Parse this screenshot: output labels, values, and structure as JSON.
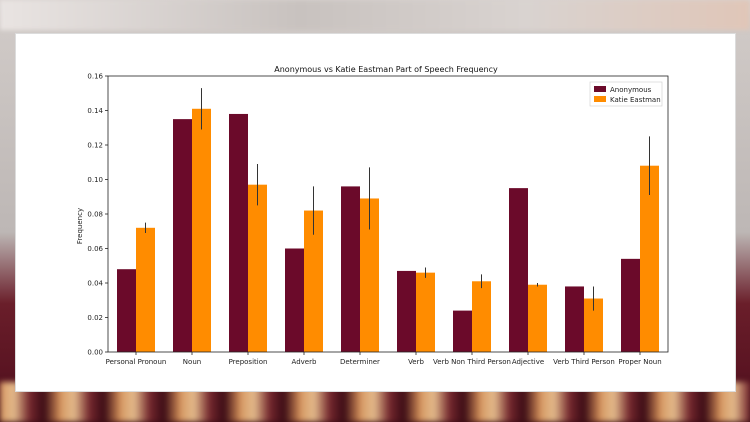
{
  "chart_data": {
    "type": "bar",
    "title": "Anonymous vs Katie Eastman Part of Speech Frequency",
    "xlabel": "",
    "ylabel": "Frequency",
    "ylim": [
      0,
      0.16
    ],
    "yticks": [
      "0.00",
      "0.02",
      "0.04",
      "0.06",
      "0.08",
      "0.10",
      "0.12",
      "0.14",
      "0.16"
    ],
    "categories": [
      "Personal Pronoun",
      "Noun",
      "Preposition",
      "Adverb",
      "Determiner",
      "Verb",
      "Verb Non Third Person",
      "Adjective",
      "Verb Third Person",
      "Proper Noun"
    ],
    "series": [
      {
        "name": "Anonymous",
        "color": "#6b0a2a",
        "values": [
          0.048,
          0.135,
          0.138,
          0.06,
          0.096,
          0.047,
          0.024,
          0.095,
          0.038,
          0.054
        ],
        "errors": [
          0,
          0,
          0,
          0,
          0,
          0,
          0,
          0,
          0,
          0
        ]
      },
      {
        "name": "Katie Eastman",
        "color": "#ff8c00",
        "values": [
          0.072,
          0.141,
          0.097,
          0.082,
          0.089,
          0.046,
          0.041,
          0.039,
          0.031,
          0.108
        ],
        "errors": [
          0.003,
          0.012,
          0.012,
          0.014,
          0.018,
          0.003,
          0.004,
          0.001,
          0.007,
          0.017
        ]
      }
    ],
    "legend": "top-right",
    "grid": false
  }
}
